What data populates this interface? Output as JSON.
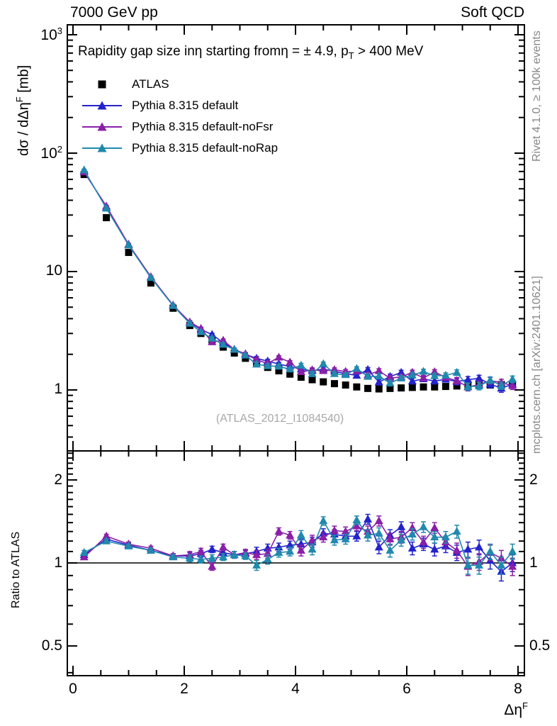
{
  "header": {
    "left": "7000 GeV pp",
    "right": "Soft QCD"
  },
  "panel_title": {
    "t1": "Rapidity gap size inη starting fromη = ± 4.9, p",
    "sub": "T",
    "t2": " > 400 MeV"
  },
  "side_notes": {
    "top_right_vertical": "Rivet 4.1.0, ≥ 100k events",
    "bottom_right_vertical": "mcplots.cern.ch [arXiv:2401.10621]"
  },
  "watermark": "(ATLAS_2012_I1084540)",
  "axes": {
    "y_top_label": {
      "pre": "dσ / dΔη",
      "sup": "F",
      "post": " [mb]"
    },
    "x_label": {
      "pre": "Δη",
      "sup": "F"
    },
    "ratio_label": "Ratio to ATLAS",
    "x_major_ticks": [
      0,
      2,
      4,
      6,
      8
    ],
    "x_minor_step": 0.5,
    "x_range": [
      -0.1,
      8.11
    ],
    "y_top_ticks": [
      {
        "v": 1000,
        "base": "10",
        "exp": "3"
      },
      {
        "v": 100,
        "base": "10",
        "exp": "2"
      },
      {
        "v": 10,
        "base": "10",
        "exp": ""
      },
      {
        "v": 1,
        "base": "1",
        "exp": ""
      }
    ],
    "y_top_range": [
      0.31,
      1200
    ],
    "ratio_major_ticks": [
      {
        "v": 2,
        "label": "2"
      },
      {
        "v": 1,
        "label": "1"
      },
      {
        "v": 0.5,
        "label": "0.5"
      }
    ],
    "ratio_minor_ticks": [
      0.4,
      0.6,
      0.7,
      0.8,
      0.9,
      1.1,
      1.2,
      1.3,
      1.4,
      1.5,
      1.6,
      1.7,
      1.8,
      1.9,
      2.1,
      2.2,
      2.3,
      2.4,
      2.5
    ],
    "ratio_range": [
      0.39,
      2.55
    ],
    "ratio_reference": 1.0
  },
  "legend": {
    "items": [
      {
        "label": "ATLAS",
        "marker": "square",
        "color": "#000000"
      },
      {
        "label": "Pythia 8.315 default",
        "marker": "triangle",
        "color": "#2323cd"
      },
      {
        "label": "Pythia 8.315 default-noFsr",
        "marker": "triangle",
        "color": "#8a1fa8"
      },
      {
        "label": "Pythia 8.315 default-noRap",
        "marker": "triangle",
        "color": "#2089ad"
      }
    ]
  },
  "chart_data": {
    "type": "line",
    "title": "Rapidity gap size in η starting from η = ± 4.9, pT > 400 MeV",
    "xlabel": "Δη^F",
    "ylabel": "dσ / dΔη^F [mb]",
    "y_scale": "log",
    "ratio_scale": "log",
    "x": [
      0.2,
      0.6,
      1.0,
      1.4,
      1.8,
      2.1,
      2.3,
      2.5,
      2.7,
      2.9,
      3.1,
      3.3,
      3.5,
      3.7,
      3.9,
      4.1,
      4.3,
      4.5,
      4.7,
      4.9,
      5.1,
      5.3,
      5.5,
      5.7,
      5.9,
      6.1,
      6.3,
      6.5,
      6.7,
      6.9,
      7.1,
      7.3,
      7.5,
      7.7,
      7.9
    ],
    "reference": {
      "name": "ATLAS",
      "marker": "square",
      "color": "#000000",
      "values": [
        66,
        28.5,
        14.5,
        8.0,
        4.9,
        3.5,
        3.0,
        2.62,
        2.3,
        2.05,
        1.85,
        1.68,
        1.55,
        1.45,
        1.36,
        1.28,
        1.22,
        1.17,
        1.13,
        1.1,
        1.06,
        1.03,
        1.02,
        1.03,
        1.04,
        1.05,
        1.06,
        1.06,
        1.07,
        1.08,
        1.09,
        1.1,
        1.1,
        1.11,
        1.12
      ]
    },
    "series": [
      {
        "name": "Pythia 8.315 default",
        "marker": "triangle",
        "color": "#2323cd",
        "ratio": [
          1.07,
          1.22,
          1.16,
          1.11,
          1.06,
          1.06,
          1.08,
          1.12,
          1.09,
          1.07,
          1.08,
          1.1,
          1.13,
          1.14,
          1.16,
          1.17,
          1.19,
          1.28,
          1.27,
          1.25,
          1.25,
          1.44,
          1.14,
          1.26,
          1.35,
          1.13,
          1.17,
          1.12,
          1.15,
          1.09,
          1.12,
          1.14,
          1.02,
          0.93,
          1.0
        ],
        "ratio_err": [
          0.02,
          0.02,
          0.02,
          0.02,
          0.02,
          0.03,
          0.03,
          0.03,
          0.03,
          0.03,
          0.03,
          0.04,
          0.04,
          0.04,
          0.04,
          0.05,
          0.05,
          0.05,
          0.05,
          0.05,
          0.05,
          0.06,
          0.06,
          0.06,
          0.06,
          0.06,
          0.06,
          0.06,
          0.06,
          0.07,
          0.07,
          0.07,
          0.07,
          0.07,
          0.07
        ]
      },
      {
        "name": "Pythia 8.315 default-noFsr",
        "marker": "triangle",
        "color": "#8a1fa8",
        "ratio": [
          1.05,
          1.25,
          1.17,
          1.13,
          1.06,
          1.07,
          1.1,
          0.97,
          1.14,
          1.07,
          1.09,
          1.07,
          1.08,
          1.3,
          1.26,
          1.11,
          1.21,
          1.24,
          1.31,
          1.3,
          1.36,
          1.3,
          1.42,
          1.22,
          1.24,
          1.34,
          1.19,
          1.34,
          1.19,
          1.11,
          0.97,
          1.01,
          1.09,
          1.04,
          0.97
        ],
        "ratio_err": [
          0.02,
          0.02,
          0.02,
          0.02,
          0.02,
          0.03,
          0.03,
          0.03,
          0.03,
          0.03,
          0.03,
          0.04,
          0.04,
          0.04,
          0.04,
          0.05,
          0.05,
          0.05,
          0.05,
          0.05,
          0.05,
          0.06,
          0.06,
          0.06,
          0.06,
          0.06,
          0.06,
          0.06,
          0.06,
          0.07,
          0.07,
          0.07,
          0.07,
          0.07,
          0.07
        ]
      },
      {
        "name": "Pythia 8.315 default-noRap",
        "marker": "triangle",
        "color": "#2089ad",
        "ratio": [
          1.09,
          1.2,
          1.15,
          1.11,
          1.05,
          1.04,
          1.03,
          1.04,
          1.05,
          1.07,
          1.06,
          0.98,
          1.03,
          1.09,
          1.1,
          1.26,
          1.12,
          1.42,
          1.21,
          1.22,
          1.43,
          1.26,
          1.28,
          1.11,
          1.21,
          1.27,
          1.35,
          1.24,
          1.24,
          1.3,
          0.98,
          0.98,
          1.1,
          0.98,
          1.1
        ],
        "ratio_err": [
          0.02,
          0.02,
          0.02,
          0.02,
          0.02,
          0.03,
          0.03,
          0.03,
          0.03,
          0.03,
          0.03,
          0.04,
          0.04,
          0.04,
          0.04,
          0.05,
          0.05,
          0.05,
          0.05,
          0.05,
          0.05,
          0.06,
          0.06,
          0.06,
          0.06,
          0.06,
          0.06,
          0.06,
          0.06,
          0.07,
          0.07,
          0.07,
          0.07,
          0.07,
          0.07
        ]
      }
    ]
  }
}
